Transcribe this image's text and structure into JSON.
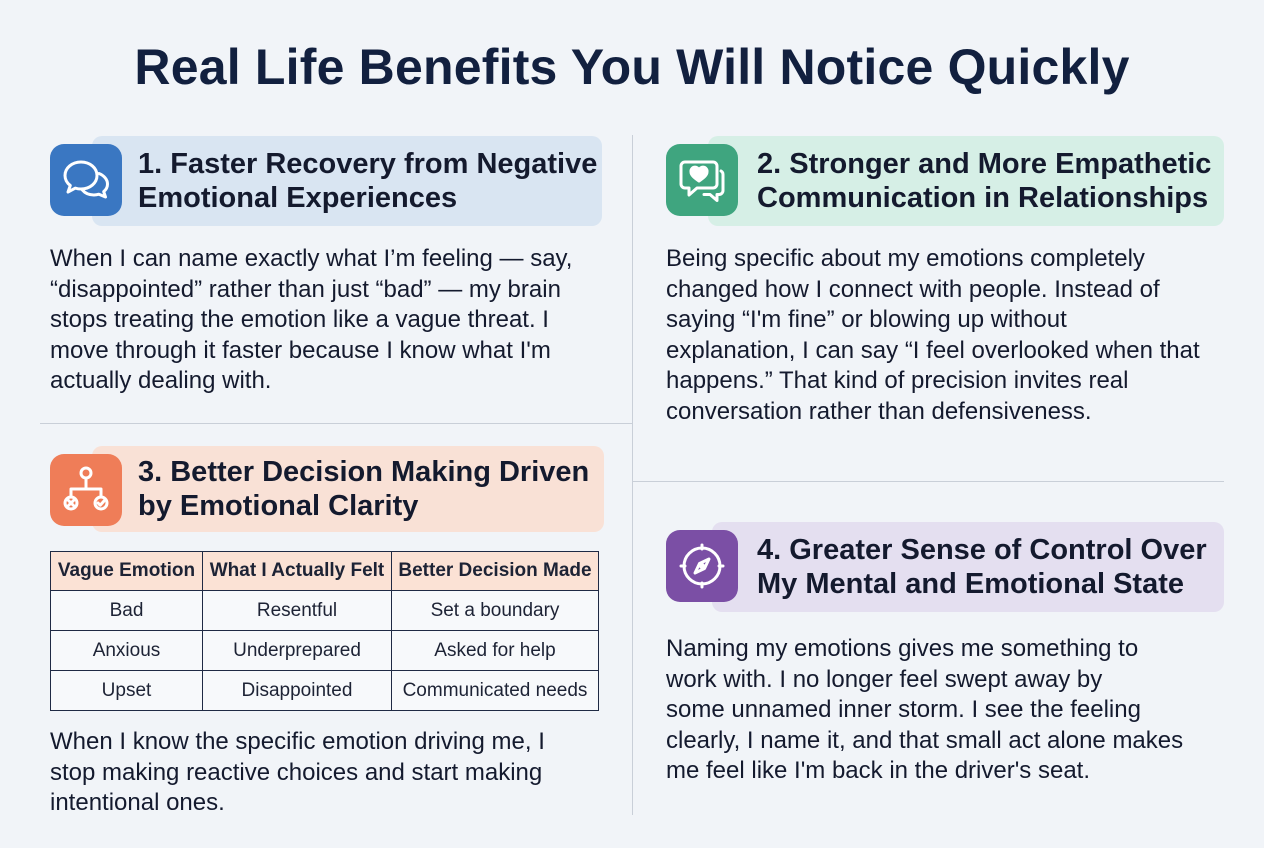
{
  "page": {
    "title": "Real Life Benefits You Will Notice Quickly"
  },
  "sections": [
    {
      "icon": "chat-bubbles-icon",
      "accent": "#3a77c2",
      "band": "#d9e5f2",
      "title_lines": [
        "1. Faster Recovery from Negative",
        "Emotional Experiences"
      ],
      "body_lines": [
        "When I can name exactly what I’m feeling — say,",
        "“disappointed” rather than just “bad” — my brain",
        "stops treating the emotion like a vague threat. I",
        "move through it faster because I know what I'm",
        "actually dealing with."
      ]
    },
    {
      "icon": "heart-chat-icon",
      "accent": "#3fa57f",
      "band": "#d6efe6",
      "title_lines": [
        "2. Stronger and More Empathetic",
        "Communication in Relationships"
      ],
      "body_lines": [
        "Being specific about my emotions completely",
        "changed how I connect with people. Instead of",
        "saying “I'm fine” or blowing up without",
        "explanation, I can say “I feel overlooked when that",
        "happens.” That kind of precision invites real",
        "conversation rather than defensiveness."
      ]
    },
    {
      "icon": "decision-tree-icon",
      "accent": "#ef7d58",
      "band": "#f9e1d6",
      "title_lines": [
        "3. Better Decision Making Driven",
        "by Emotional Clarity"
      ],
      "table": {
        "headers": [
          "Vague Emotion",
          "What I Actually Felt",
          "Better Decision Made"
        ],
        "rows": [
          [
            "Bad",
            "Resentful",
            "Set a boundary"
          ],
          [
            "Anxious",
            "Underprepared",
            "Asked for help"
          ],
          [
            "Upset",
            "Disappointed",
            "Communicated needs"
          ]
        ]
      },
      "body_lines": [
        "When I know the specific emotion driving me, I",
        "stop making reactive choices and start making",
        "intentional ones."
      ]
    },
    {
      "icon": "compass-icon",
      "accent": "#7b4fa5",
      "band": "#e4dff0",
      "title_lines": [
        "4. Greater Sense of Control Over",
        "My Mental and Emotional State"
      ],
      "body_lines": [
        "Naming my emotions gives me something to",
        "work with. I no longer feel swept away by",
        "some unnamed inner storm. I see the feeling",
        "clearly, I name it, and that small act alone makes",
        "me feel like I'm back in the driver's seat."
      ]
    }
  ]
}
